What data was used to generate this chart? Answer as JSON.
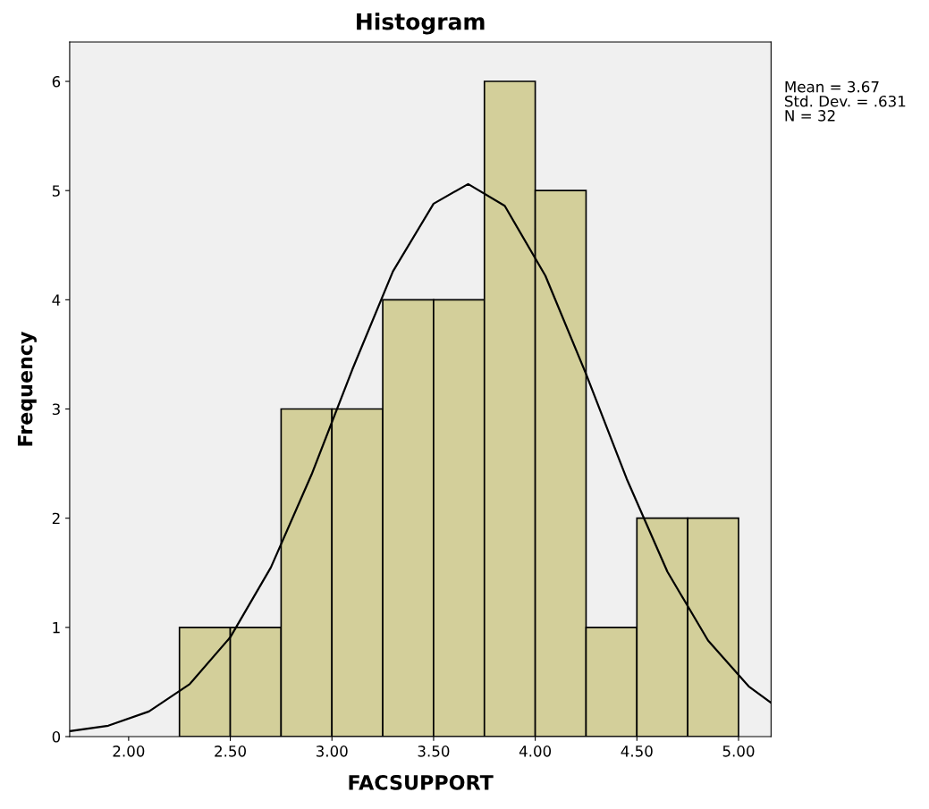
{
  "chart_data": {
    "type": "histogram",
    "title": "Histogram",
    "xlabel": "FACSUPPORT",
    "ylabel": "Frequency",
    "bins": [
      2.25,
      2.5,
      2.75,
      3.0,
      3.25,
      3.5,
      3.75,
      4.0,
      4.25,
      4.5,
      4.75,
      5.0
    ],
    "values": [
      1,
      1,
      3,
      3,
      4,
      4,
      6,
      5,
      1,
      2,
      2
    ],
    "color": "#d3cf9a",
    "series": [
      {
        "type": "line",
        "color": "#000000",
        "x": [
          1.71,
          1.9,
          2.1,
          2.3,
          2.5,
          2.7,
          2.9,
          3.1,
          3.3,
          3.5,
          3.67,
          3.85,
          4.05,
          4.25,
          4.45,
          4.65,
          4.85,
          5.05,
          5.16
        ],
        "values": [
          0.05,
          0.1,
          0.23,
          0.48,
          0.91,
          1.55,
          2.4,
          3.36,
          4.26,
          4.88,
          5.06,
          4.86,
          4.22,
          3.32,
          2.36,
          1.51,
          0.88,
          0.46,
          0.31
        ]
      }
    ],
    "xlim": [
      1.71,
      5.16
    ],
    "ylim": [
      0,
      6.36
    ],
    "xticks": [
      {
        "value": 2.0,
        "label": "2.00"
      },
      {
        "value": 2.5,
        "label": "2.50"
      },
      {
        "value": 3.0,
        "label": "3.00"
      },
      {
        "value": 3.5,
        "label": "3.50"
      },
      {
        "value": 4.0,
        "label": "4.00"
      },
      {
        "value": 4.5,
        "label": "4.50"
      },
      {
        "value": 5.0,
        "label": "5.00"
      }
    ],
    "yticks": [
      0,
      1,
      2,
      3,
      4,
      5,
      6
    ],
    "annotations": [
      "Mean = 3.67\nStd. Dev. = .631\nN = 32"
    ],
    "grid": false,
    "legend": false
  }
}
